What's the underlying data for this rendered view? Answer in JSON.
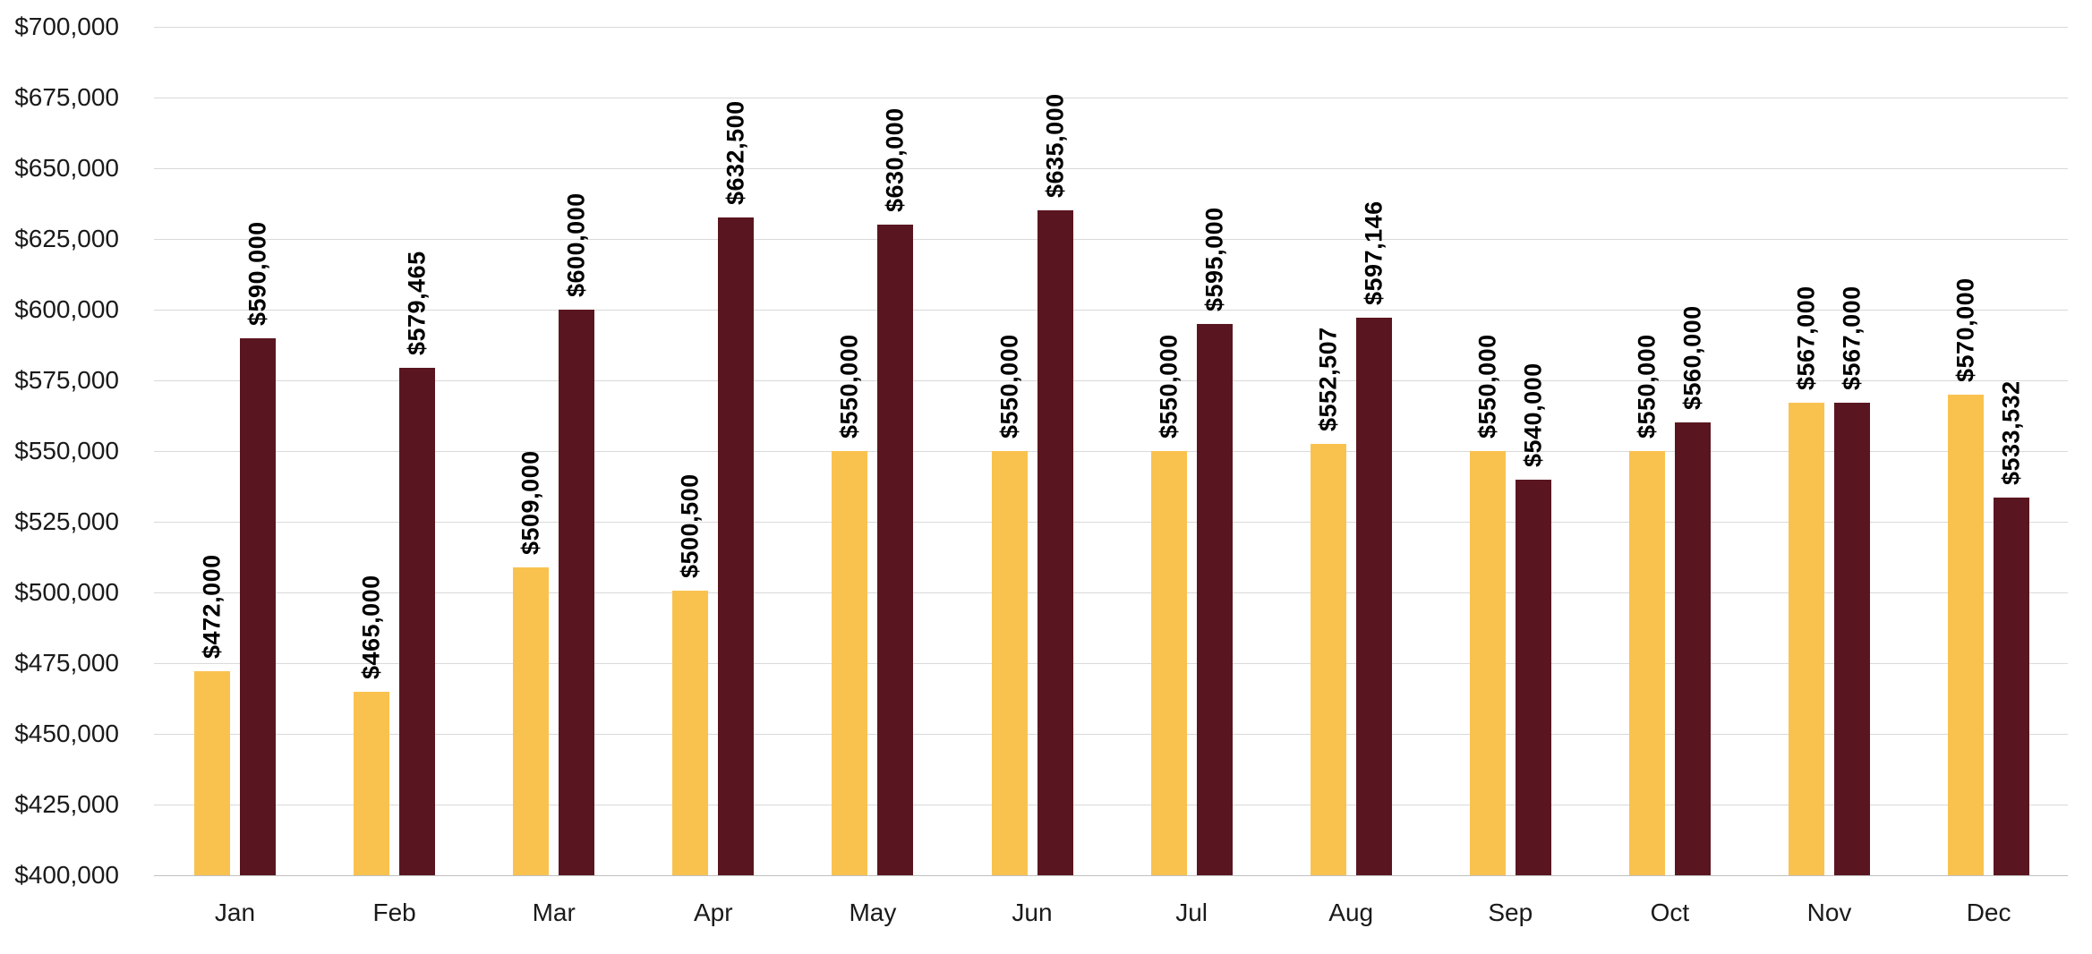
{
  "chart_data": {
    "type": "bar",
    "title": "",
    "xlabel": "",
    "ylabel": "",
    "categories": [
      "Jan",
      "Feb",
      "Mar",
      "Apr",
      "May",
      "Jun",
      "Jul",
      "Aug",
      "Sep",
      "Oct",
      "Nov",
      "Dec"
    ],
    "series": [
      {
        "name": "series-1-gold",
        "color": "#F9C24F",
        "values": [
          472000,
          465000,
          509000,
          500500,
          550000,
          550000,
          550000,
          552507,
          550000,
          550000,
          567000,
          570000
        ],
        "labels": [
          "$472,000",
          "$465,000",
          "$509,000",
          "$500,500",
          "$550,000",
          "$550,000",
          "$550,000",
          "$552,507",
          "$550,000",
          "$550,000",
          "$567,000",
          "$570,000"
        ]
      },
      {
        "name": "series-2-maroon",
        "color": "#5A1620",
        "values": [
          590000,
          579465,
          600000,
          632500,
          630000,
          635000,
          595000,
          597146,
          540000,
          560000,
          567000,
          533532
        ],
        "labels": [
          "$590,000",
          "$579,465",
          "$600,000",
          "$632,500",
          "$630,000",
          "$635,000",
          "$595,000",
          "$597,146",
          "$540,000",
          "$560,000",
          "$567,000",
          "$533,532"
        ]
      }
    ],
    "ylim": [
      400000,
      700000
    ],
    "ytick_step": 25000,
    "ytick_labels": [
      "$400,000",
      "$425,000",
      "$450,000",
      "$475,000",
      "$500,000",
      "$525,000",
      "$550,000",
      "$575,000",
      "$600,000",
      "$625,000",
      "$650,000",
      "$675,000",
      "$700,000"
    ],
    "grid": true,
    "legend_position": "none",
    "data_label_rotation_deg": 90
  },
  "colors": {
    "background": "#FFFFFF",
    "gridline": "#D9D9D9",
    "axis_line": "#BFBFBF",
    "tick_text": "#1A1A1A",
    "data_label_text": "#000000"
  }
}
